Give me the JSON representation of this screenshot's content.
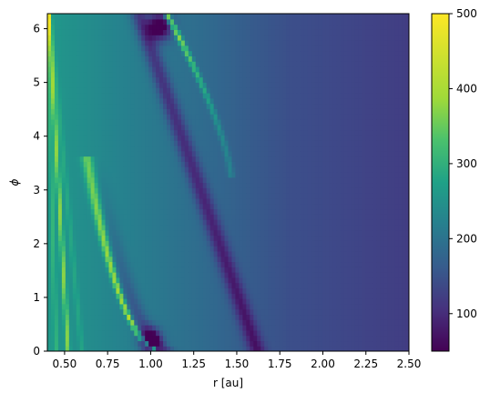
{
  "chart_data": {
    "type": "heatmap",
    "title": "",
    "xlabel": "r [au]",
    "ylabel": "ϕ",
    "xlim": [
      0.4,
      2.5
    ],
    "ylim": [
      0.0,
      6.28
    ],
    "xticks": [
      "0.50",
      "0.75",
      "1.00",
      "1.25",
      "1.50",
      "1.75",
      "2.00",
      "2.25",
      "2.50"
    ],
    "xtick_values": [
      0.5,
      0.75,
      1.0,
      1.25,
      1.5,
      1.75,
      2.0,
      2.25,
      2.5
    ],
    "yticks": [
      "0",
      "1",
      "2",
      "3",
      "4",
      "5",
      "6"
    ],
    "ytick_values": [
      0,
      1,
      2,
      3,
      4,
      5,
      6
    ],
    "colorbar": {
      "colormap": "viridis",
      "vmin": 50,
      "vmax": 500,
      "ticks": [
        "100",
        "200",
        "300",
        "400",
        "500"
      ],
      "tick_values": [
        100,
        200,
        300,
        400,
        500
      ]
    },
    "features": {
      "bright_arc": {
        "r_start": 0.62,
        "r_end": 1.08,
        "value": 500
      },
      "dark_spiral": {
        "r_start": 1.0,
        "r_end": 1.75,
        "value": 70
      },
      "background_outer": 160,
      "background_inner": 290
    }
  }
}
